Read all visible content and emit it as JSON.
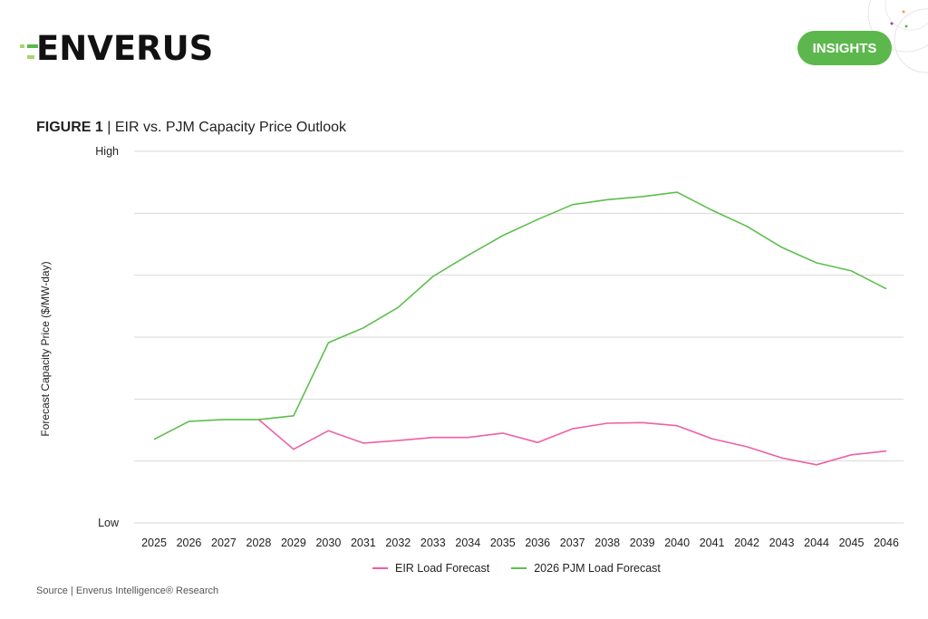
{
  "brand": {
    "logo_text": "ENVERUS",
    "badge": "INSIGHTS",
    "green": "#5cb84c",
    "light_green": "#a8d66e"
  },
  "figure": {
    "label": "FIGURE 1",
    "separator": " | ",
    "title": "EIR vs. PJM Capacity Price Outlook"
  },
  "source": "Source | Enverus Intelligence® Research",
  "chart_data": {
    "type": "line",
    "title": "EIR vs. PJM Capacity Price Outlook",
    "xlabel": "",
    "ylabel": "Forecast Capacity Price ($/MW-day)",
    "y_tick_labels": {
      "low": "Low",
      "high": "High"
    },
    "ylim": [
      0,
      6
    ],
    "grid": true,
    "legend_position": "bottom",
    "x": [
      "2025",
      "2026",
      "2027",
      "2028",
      "2029",
      "2030",
      "2031",
      "2032",
      "2033",
      "2034",
      "2035",
      "2036",
      "2037",
      "2038",
      "2039",
      "2040",
      "2041",
      "2042",
      "2043",
      "2044",
      "2045",
      "2046"
    ],
    "series": [
      {
        "name": "EIR Load Forecast",
        "color": "#ee5fa7",
        "values": [
          null,
          null,
          null,
          1.67,
          1.19,
          1.49,
          1.29,
          1.33,
          1.38,
          1.38,
          1.45,
          1.3,
          1.52,
          1.61,
          1.62,
          1.57,
          1.36,
          1.23,
          1.05,
          0.94,
          1.1,
          1.16
        ]
      },
      {
        "name": "2026 PJM Load Forecast",
        "color": "#5cbf4c",
        "values": [
          1.35,
          1.64,
          1.67,
          1.67,
          1.73,
          2.91,
          3.15,
          3.48,
          3.98,
          4.32,
          4.64,
          4.9,
          5.14,
          5.22,
          5.27,
          5.34,
          5.05,
          4.79,
          4.45,
          4.2,
          4.07,
          3.78
        ]
      }
    ]
  }
}
